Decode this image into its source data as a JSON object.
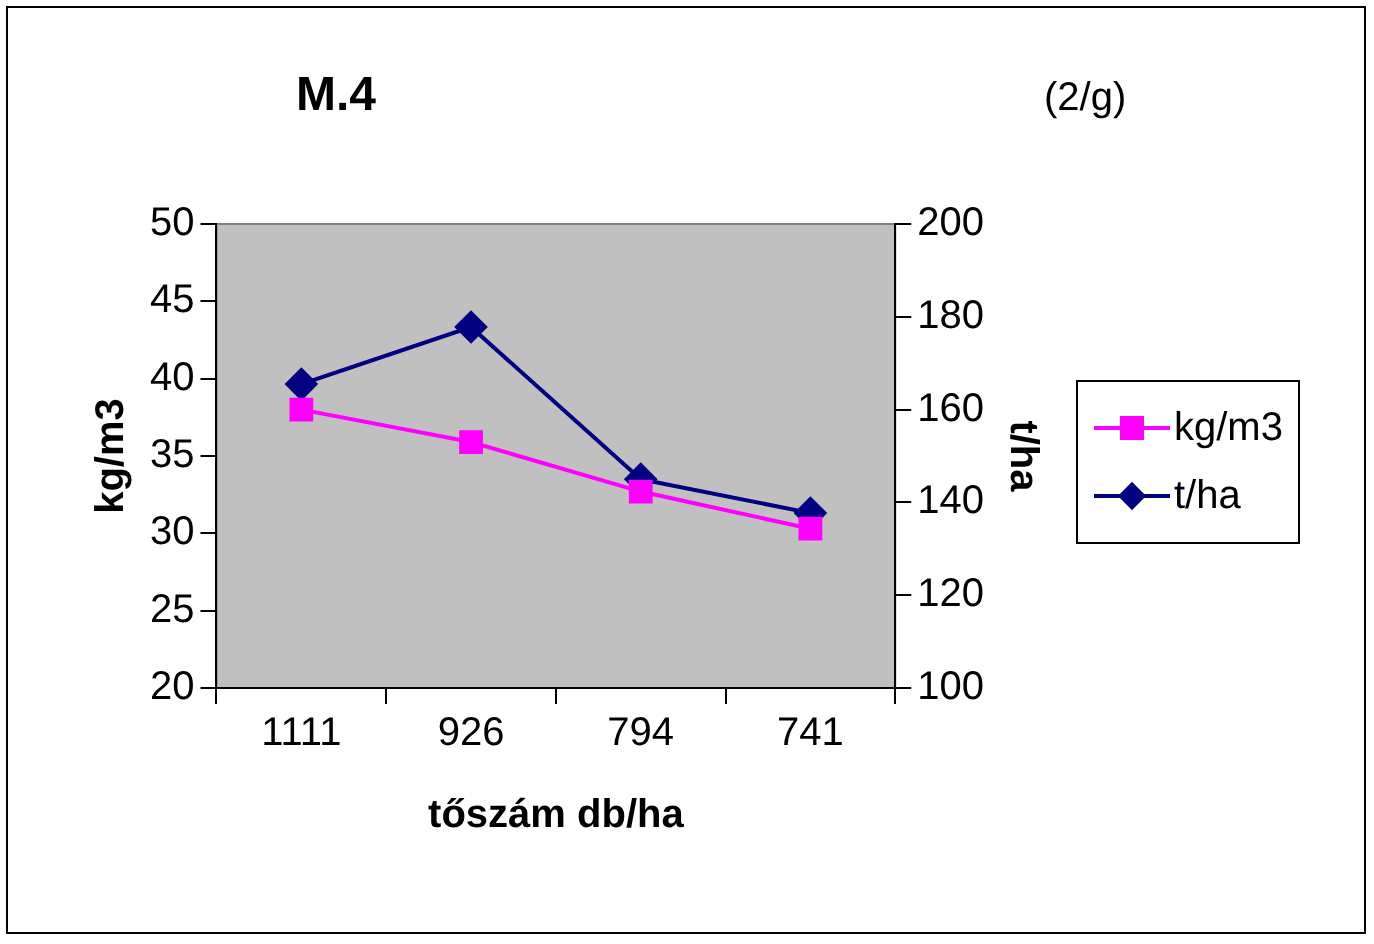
{
  "chart_data": {
    "type": "line",
    "title": "M.4",
    "annotations": [
      "(2/g)"
    ],
    "xlabel": "tőszám db/ha",
    "ylabel": "kg/m3",
    "y2label": "t/ha",
    "categories": [
      "1111",
      "926",
      "794",
      "741"
    ],
    "series": [
      {
        "name": "kg/m3",
        "color": "#ff00ff",
        "marker": "square",
        "values": [
          38.0,
          35.9,
          32.7,
          30.3
        ]
      },
      {
        "name": "t/ha",
        "color": "#000080",
        "marker": "diamond",
        "axis": "y2",
        "values": [
          165.5,
          177.8,
          145.0,
          137.7
        ]
      }
    ],
    "ylim": [
      20,
      50
    ],
    "yticks": [
      20,
      25,
      30,
      35,
      40,
      45,
      50
    ],
    "y2lim": [
      100,
      200
    ],
    "y2ticks": [
      100,
      120,
      140,
      160,
      180,
      200
    ],
    "grid": false,
    "legend": "right",
    "line_style": "solid"
  }
}
